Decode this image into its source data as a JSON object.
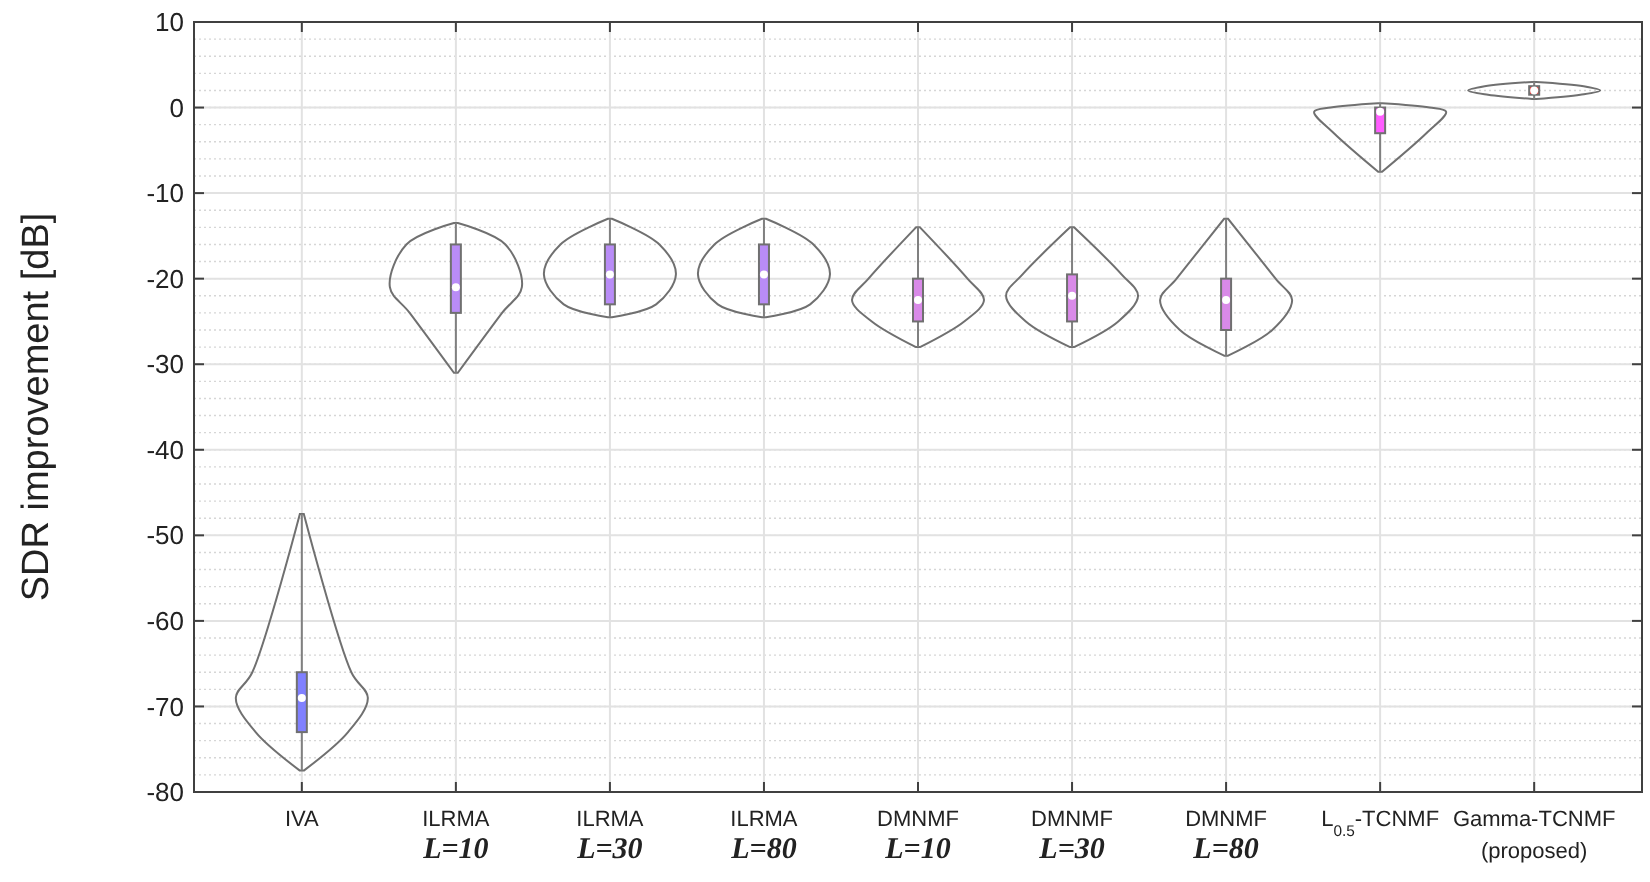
{
  "chart_data": {
    "type": "box",
    "ylabel": "SDR improvement [dB]",
    "categories": [
      "IVA",
      "ILRMA\nL=10",
      "ILRMA\nL=30",
      "ILRMA\nL=80",
      "DMNMF\nL=10",
      "DMNMF\nL=30",
      "DMNMF\nL=80",
      "L$_{0.5}$-TCNMF",
      "Gamma-TCNMF\n(proposed)"
    ],
    "boxes": [
      {
        "low": -77.5,
        "q1": -73,
        "median": -69,
        "q3": -66,
        "high": -47.5
      },
      {
        "low": -31,
        "q1": -24,
        "median": -21,
        "q3": -16,
        "high": -13.5
      },
      {
        "low": -24.5,
        "q1": -23,
        "median": -19.5,
        "q3": -16,
        "high": -13
      },
      {
        "low": -24.5,
        "q1": -23,
        "median": -19.5,
        "q3": -16,
        "high": -13
      },
      {
        "low": -28,
        "q1": -25,
        "median": -22.5,
        "q3": -20,
        "high": -14
      },
      {
        "low": -28,
        "q1": -25,
        "median": -22,
        "q3": -19.5,
        "high": -14
      },
      {
        "low": -29,
        "q1": -26,
        "median": -22.5,
        "q3": -20,
        "high": -13
      },
      {
        "low": -7.5,
        "q1": -3,
        "median": -0.5,
        "q3": 0,
        "high": 0.5
      },
      {
        "low": 1,
        "q1": 1.5,
        "median": 2,
        "q3": 2.5,
        "high": 3
      }
    ],
    "colors": [
      "#8080ff",
      "#b98cf7",
      "#b98cf7",
      "#b98cf7",
      "#d98ae8",
      "#d98ae8",
      "#d98ae8",
      "#ff5cff",
      "#ff3030"
    ],
    "ylim": [
      -80,
      10
    ],
    "yticks": [
      -80,
      -70,
      -60,
      -50,
      -40,
      -30,
      -20,
      -10,
      0,
      10
    ],
    "grid": true
  }
}
